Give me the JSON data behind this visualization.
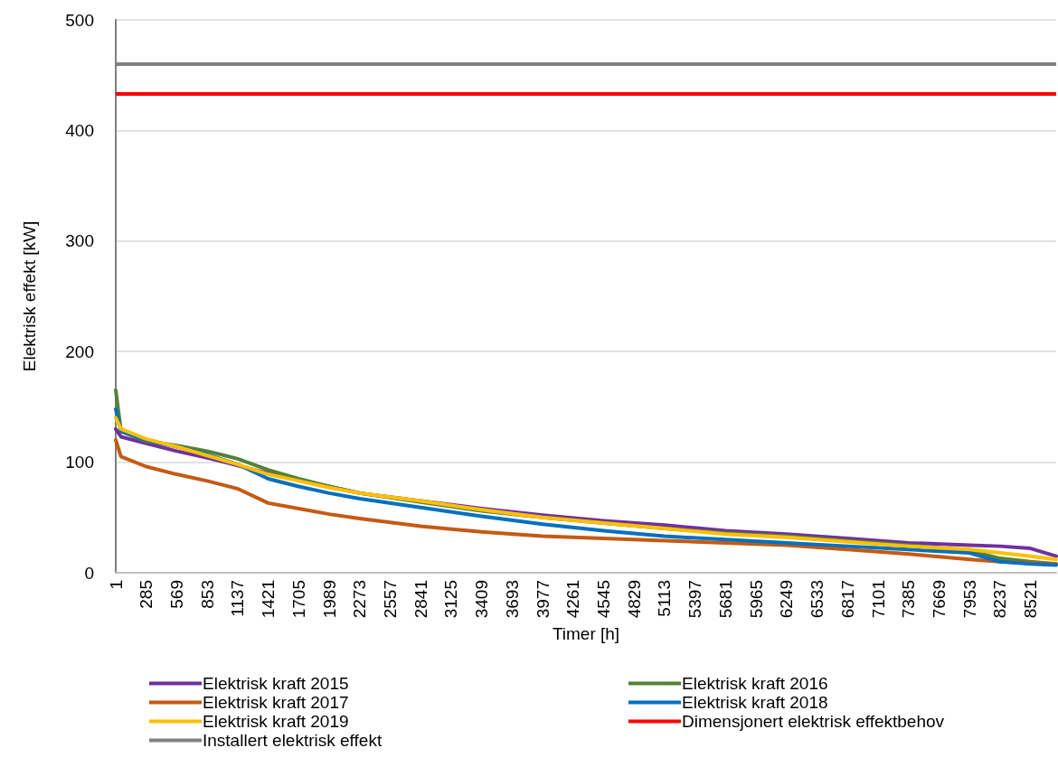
{
  "chart_data": {
    "type": "line",
    "xlabel": "Timer [h]",
    "ylabel": "Elektrisk effekt [kW]",
    "x": [
      1,
      50,
      285,
      569,
      853,
      1137,
      1421,
      1705,
      1989,
      2273,
      2841,
      3409,
      3977,
      4545,
      5113,
      5681,
      6249,
      6817,
      7385,
      7953,
      8237,
      8521,
      8760
    ],
    "series": [
      {
        "name": "Elektrisk kraft 2015",
        "color": "#7030a0",
        "values": [
          130,
          123,
          117,
          110,
          104,
          97,
          90,
          84,
          78,
          72,
          65,
          58,
          52,
          47,
          43,
          38,
          35,
          31,
          27,
          25,
          24,
          22,
          15
        ]
      },
      {
        "name": "Elektrisk kraft 2016",
        "color": "#548235",
        "values": [
          165,
          128,
          119,
          115,
          110,
          103,
          93,
          85,
          78,
          72,
          64,
          56,
          50,
          45,
          40,
          36,
          33,
          29,
          25,
          20,
          13,
          10,
          8
        ]
      },
      {
        "name": "Elektrisk kraft 2017",
        "color": "#c55a11",
        "values": [
          120,
          105,
          96,
          89,
          83,
          76,
          63,
          58,
          53,
          49,
          42,
          37,
          33,
          31,
          29,
          27,
          25,
          21,
          17,
          12,
          10,
          9,
          8
        ]
      },
      {
        "name": "Elektrisk kraft 2018",
        "color": "#0070c0",
        "values": [
          148,
          128,
          120,
          114,
          107,
          98,
          85,
          78,
          72,
          67,
          59,
          51,
          44,
          38,
          33,
          30,
          27,
          24,
          21,
          18,
          10,
          8,
          7
        ]
      },
      {
        "name": "Elektrisk kraft 2019",
        "color": "#ffc000",
        "values": [
          140,
          130,
          121,
          114,
          106,
          98,
          89,
          83,
          77,
          72,
          65,
          57,
          50,
          45,
          40,
          35,
          32,
          28,
          24,
          21,
          18,
          15,
          12
        ]
      }
    ],
    "ref_lines": [
      {
        "axis": "y",
        "value": 433,
        "label": "Dimensjonert elektrisk effektbehov",
        "color": "#ff0000"
      },
      {
        "axis": "y",
        "value": 460,
        "label": "Installert elektrisk effekt",
        "color": "#808080"
      }
    ],
    "xlim": [
      1,
      8760
    ],
    "xticks": [
      1,
      285,
      569,
      853,
      1137,
      1421,
      1705,
      1989,
      2273,
      2557,
      2841,
      3125,
      3409,
      3693,
      3977,
      4261,
      4545,
      4829,
      5113,
      5397,
      5681,
      5965,
      6249,
      6533,
      6817,
      7101,
      7385,
      7669,
      7953,
      8237,
      8521
    ],
    "ylim": [
      0,
      500
    ],
    "yticks": [
      0,
      100,
      200,
      300,
      400,
      500
    ],
    "grid": "y",
    "legend": "bottom",
    "marker": "none",
    "line_style": "solid"
  }
}
